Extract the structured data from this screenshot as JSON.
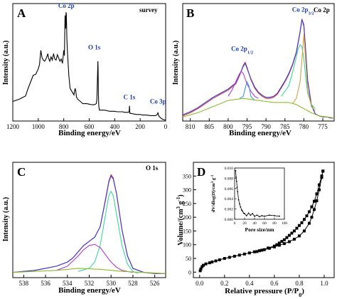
{
  "chart_data": [
    {
      "id": "A",
      "type": "line",
      "panel_letter": "A",
      "annotation": "survey",
      "xlabel": "Binding energy/eV",
      "ylabel": "Intensity (a.u.)",
      "xlim": [
        1200,
        0
      ],
      "xticks": [
        "1200",
        "1000",
        "800",
        "600",
        "400",
        "200",
        "0"
      ],
      "xtick_values": [
        1200,
        1000,
        800,
        600,
        400,
        200,
        0
      ],
      "peak_labels": [
        {
          "text": "Co 2p",
          "x": 780,
          "y": 1.0
        },
        {
          "text": "O 1s",
          "x": 560,
          "y": 0.62
        },
        {
          "text": "C 1s",
          "x": 285,
          "y": 0.16
        },
        {
          "text": "Co 3p",
          "x": 60,
          "y": 0.12
        }
      ],
      "series": [
        {
          "color": "#000000",
          "x": [
            1200,
            1150,
            1100,
            1080,
            1060,
            1040,
            1020,
            1000,
            990,
            980,
            970,
            960,
            950,
            940,
            930,
            925,
            920,
            910,
            900,
            890,
            880,
            870,
            860,
            850,
            840,
            830,
            820,
            810,
            800,
            795,
            790,
            785,
            782,
            780,
            778,
            775,
            770,
            765,
            760,
            750,
            740,
            730,
            720,
            715,
            710,
            705,
            700,
            690,
            680,
            670,
            660,
            650,
            640,
            620,
            600,
            580,
            560,
            545,
            540,
            535,
            532,
            530,
            528,
            525,
            520,
            500,
            480,
            460,
            440,
            420,
            400,
            380,
            360,
            340,
            320,
            300,
            290,
            286,
            284,
            282,
            280,
            270,
            250,
            230,
            200,
            180,
            150,
            120,
            100,
            90,
            80,
            70,
            62,
            60,
            58,
            50,
            40,
            30,
            20,
            10,
            5,
            0
          ],
          "y": [
            0.18,
            0.2,
            0.23,
            0.3,
            0.36,
            0.42,
            0.43,
            0.48,
            0.52,
            0.65,
            0.58,
            0.56,
            0.55,
            0.57,
            0.6,
            0.62,
            0.58,
            0.55,
            0.59,
            0.56,
            0.62,
            0.57,
            0.56,
            0.61,
            0.58,
            0.55,
            0.57,
            0.53,
            0.65,
            0.6,
            0.97,
            0.85,
            1.0,
            0.98,
            0.9,
            0.75,
            0.62,
            0.52,
            0.42,
            0.3,
            0.28,
            0.26,
            0.24,
            0.28,
            0.3,
            0.27,
            0.22,
            0.2,
            0.19,
            0.18,
            0.17,
            0.16,
            0.16,
            0.16,
            0.155,
            0.15,
            0.15,
            0.16,
            0.2,
            0.4,
            0.55,
            0.47,
            0.25,
            0.14,
            0.1,
            0.1,
            0.1,
            0.095,
            0.09,
            0.09,
            0.09,
            0.085,
            0.085,
            0.085,
            0.08,
            0.08,
            0.08,
            0.095,
            0.14,
            0.09,
            0.07,
            0.07,
            0.065,
            0.06,
            0.06,
            0.055,
            0.055,
            0.05,
            0.05,
            0.05,
            0.05,
            0.055,
            0.07,
            0.08,
            0.06,
            0.04,
            0.03,
            0.02,
            0.015,
            0.01,
            0.01,
            0.01
          ]
        }
      ]
    },
    {
      "id": "B",
      "type": "line",
      "panel_letter": "B",
      "annotation": "Co 2p",
      "xlabel": "Binding energy/eV",
      "ylabel": "Intensity (a.u.)",
      "xlim": [
        812,
        772
      ],
      "xticks": [
        "810",
        "805",
        "800",
        "795",
        "790",
        "785",
        "780",
        "775"
      ],
      "xtick_values": [
        810,
        805,
        800,
        795,
        790,
        785,
        780,
        775
      ],
      "peak_labels": [
        {
          "text": "Co 2p",
          "sub": "1/2",
          "x": 796.3,
          "y": 0.62
        },
        {
          "text": "Co 2p",
          "sub": "3/2",
          "x": 780.2,
          "y": 1.0
        }
      ],
      "series": [
        {
          "color": "#d63a3a",
          "x": [
            812,
            810,
            808,
            806,
            804,
            802,
            800,
            798,
            797,
            796,
            795.5,
            795,
            794,
            793,
            792,
            791,
            790,
            789,
            788,
            787,
            786,
            785,
            784,
            783,
            782,
            781,
            780.5,
            780,
            779.5,
            779,
            778,
            777,
            776,
            775,
            774,
            773,
            772
          ],
          "y": [
            0.03,
            0.06,
            0.1,
            0.15,
            0.2,
            0.24,
            0.28,
            0.34,
            0.42,
            0.52,
            0.55,
            0.5,
            0.38,
            0.3,
            0.25,
            0.22,
            0.2,
            0.2,
            0.21,
            0.24,
            0.3,
            0.36,
            0.43,
            0.52,
            0.64,
            0.84,
            0.96,
            0.92,
            0.65,
            0.38,
            0.14,
            0.05,
            0.03,
            0.02,
            0.02,
            0.01,
            0.01
          ]
        },
        {
          "color": "#3a3ad6",
          "x": [
            812,
            810,
            808,
            806,
            804,
            802,
            800,
            798,
            797,
            796,
            795.5,
            795,
            794,
            793,
            792,
            791,
            790,
            789,
            788,
            787,
            786,
            785,
            784,
            783,
            782,
            781,
            780.5,
            780,
            779.5,
            779,
            778,
            777,
            776,
            775,
            774,
            773,
            772
          ],
          "y": [
            0.04,
            0.07,
            0.11,
            0.16,
            0.21,
            0.25,
            0.29,
            0.35,
            0.43,
            0.51,
            0.54,
            0.49,
            0.39,
            0.31,
            0.26,
            0.23,
            0.21,
            0.21,
            0.22,
            0.25,
            0.31,
            0.37,
            0.44,
            0.53,
            0.65,
            0.85,
            0.97,
            0.9,
            0.63,
            0.37,
            0.13,
            0.05,
            0.03,
            0.02,
            0.02,
            0.01,
            0.01
          ]
        },
        {
          "color": "#b23ad6",
          "x": [
            800,
            799,
            798,
            797,
            796.5,
            796,
            795,
            794,
            793,
            792
          ],
          "y": [
            0.22,
            0.28,
            0.36,
            0.44,
            0.46,
            0.44,
            0.34,
            0.27,
            0.22,
            0.2
          ]
        },
        {
          "color": "#3ad6a0",
          "x": [
            786,
            784,
            783,
            782,
            781.5,
            781,
            780.5,
            780,
            779.5,
            779,
            778,
            777
          ],
          "y": [
            0.22,
            0.32,
            0.45,
            0.6,
            0.68,
            0.72,
            0.7,
            0.58,
            0.4,
            0.25,
            0.14,
            0.1
          ]
        },
        {
          "color": "#d6a03a",
          "x": [
            783,
            782,
            781,
            780.5,
            780,
            779.5,
            779,
            778,
            777
          ],
          "y": [
            0.15,
            0.2,
            0.36,
            0.58,
            0.82,
            0.55,
            0.28,
            0.12,
            0.08
          ]
        },
        {
          "color": "#3a9ad6",
          "x": [
            797,
            796,
            795.5,
            795,
            794.5,
            794,
            793
          ],
          "y": [
            0.2,
            0.22,
            0.3,
            0.36,
            0.32,
            0.22,
            0.18
          ]
        },
        {
          "color": "#8bbd2a",
          "x": [
            812,
            808,
            804,
            800,
            796,
            792,
            790,
            788,
            786,
            784,
            782,
            780,
            778,
            776,
            774,
            772
          ],
          "y": [
            0.02,
            0.06,
            0.12,
            0.18,
            0.2,
            0.18,
            0.17,
            0.16,
            0.16,
            0.16,
            0.14,
            0.1,
            0.06,
            0.03,
            0.02,
            0.01
          ]
        }
      ]
    },
    {
      "id": "C",
      "type": "line",
      "panel_letter": "C",
      "annotation": "O 1s",
      "xlabel": "Binding energy/eV",
      "ylabel": "Intensity (a.u.)",
      "xlim": [
        539,
        525
      ],
      "xticks": [
        "538",
        "536",
        "534",
        "532",
        "530",
        "528",
        "526"
      ],
      "xtick_values": [
        538,
        536,
        534,
        532,
        530,
        528,
        526
      ],
      "series": [
        {
          "color": "#d63a3a",
          "x": [
            539,
            538,
            537,
            536,
            535,
            534,
            533.5,
            533,
            532.5,
            532,
            531.5,
            531,
            530.5,
            530.2,
            530,
            529.8,
            529.5,
            529,
            528.5,
            528,
            527,
            526,
            525
          ],
          "y": [
            0.04,
            0.05,
            0.06,
            0.08,
            0.1,
            0.14,
            0.18,
            0.24,
            0.3,
            0.34,
            0.38,
            0.48,
            0.75,
            0.92,
            0.98,
            0.95,
            0.8,
            0.45,
            0.2,
            0.08,
            0.04,
            0.03,
            0.03
          ]
        },
        {
          "color": "#3a3ad6",
          "x": [
            539,
            538,
            537,
            536,
            535,
            534,
            533.5,
            533,
            532.5,
            532,
            531.5,
            531,
            530.5,
            530.2,
            530,
            529.8,
            529.5,
            529,
            528.5,
            528,
            527,
            526,
            525
          ],
          "y": [
            0.04,
            0.05,
            0.06,
            0.08,
            0.1,
            0.14,
            0.18,
            0.24,
            0.3,
            0.34,
            0.38,
            0.48,
            0.74,
            0.91,
            0.97,
            0.94,
            0.8,
            0.45,
            0.2,
            0.08,
            0.04,
            0.03,
            0.03
          ]
        },
        {
          "color": "#3ad6a0",
          "x": [
            533,
            532,
            531.5,
            531,
            530.5,
            530.2,
            530,
            529.8,
            529.5,
            529,
            528.5,
            528,
            527.5
          ],
          "y": [
            0.05,
            0.08,
            0.14,
            0.3,
            0.6,
            0.78,
            0.82,
            0.78,
            0.6,
            0.3,
            0.12,
            0.05,
            0.03
          ]
        },
        {
          "color": "#b23ad6",
          "x": [
            535,
            534,
            533,
            532.5,
            532,
            531.5,
            531,
            530.5,
            530,
            529.5,
            529,
            528
          ],
          "y": [
            0.06,
            0.1,
            0.2,
            0.26,
            0.3,
            0.31,
            0.28,
            0.21,
            0.14,
            0.09,
            0.06,
            0.04
          ]
        },
        {
          "color": "#8bbd2a",
          "x": [
            539,
            537,
            535,
            533,
            531,
            529,
            527,
            525
          ],
          "y": [
            0.04,
            0.05,
            0.06,
            0.08,
            0.07,
            0.05,
            0.04,
            0.03
          ]
        }
      ]
    },
    {
      "id": "D",
      "type": "scatter",
      "panel_letter": "D",
      "xlabel": "Relative pressure (P/P0)",
      "ylabel": "Volume/(cm3 g-1)",
      "xlim": [
        -0.05,
        1.08
      ],
      "ylim": [
        -20,
        400
      ],
      "xticks": [
        "0.0",
        "0.2",
        "0.4",
        "0.6",
        "0.8",
        "1.0"
      ],
      "xtick_values": [
        0,
        0.2,
        0.4,
        0.6,
        0.8,
        1.0
      ],
      "yticks": [
        "0",
        "50",
        "100",
        "150",
        "200",
        "250",
        "300",
        "350"
      ],
      "ytick_values": [
        0,
        50,
        100,
        150,
        200,
        250,
        300,
        350
      ],
      "series": [
        {
          "color": "#000000",
          "x": [
            0.005,
            0.01,
            0.02,
            0.03,
            0.05,
            0.08,
            0.1,
            0.13,
            0.16,
            0.2,
            0.24,
            0.28,
            0.32,
            0.36,
            0.4,
            0.44,
            0.48,
            0.52,
            0.56,
            0.6,
            0.64,
            0.68,
            0.72,
            0.76,
            0.8,
            0.84,
            0.88,
            0.9,
            0.92,
            0.94,
            0.96,
            0.98,
            0.99
          ],
          "y": [
            5,
            12,
            20,
            25,
            30,
            34,
            37,
            41,
            45,
            50,
            54,
            58,
            62,
            66,
            70,
            74,
            78,
            82,
            87,
            92,
            98,
            104,
            111,
            120,
            132,
            150,
            178,
            200,
            228,
            260,
            300,
            345,
            368
          ]
        },
        {
          "color": "#000000",
          "x": [
            0.99,
            0.98,
            0.96,
            0.94,
            0.92,
            0.9,
            0.88,
            0.86,
            0.84,
            0.82,
            0.8,
            0.78,
            0.76,
            0.74,
            0.72,
            0.7,
            0.68,
            0.66,
            0.64,
            0.62,
            0.6,
            0.55,
            0.5,
            0.46
          ],
          "y": [
            368,
            350,
            318,
            285,
            258,
            238,
            220,
            205,
            192,
            180,
            170,
            160,
            150,
            142,
            134,
            126,
            118,
            112,
            106,
            100,
            95,
            88,
            80,
            75
          ]
        }
      ],
      "inset": {
        "type": "line",
        "xlabel": "Pore size/nm",
        "ylabel": "dV/dlog(D)/cm3 g-1",
        "xlim": [
          0,
          100
        ],
        "ylim": [
          0,
          0.01
        ],
        "xticks": [
          "0",
          "20",
          "40",
          "60",
          "80",
          "100"
        ],
        "xtick_values": [
          0,
          20,
          40,
          60,
          80,
          100
        ],
        "yticks": [
          "0.000",
          "0.002",
          "0.004",
          "0.006",
          "0.008",
          "0.010"
        ],
        "ytick_values": [
          0,
          0.002,
          0.004,
          0.006,
          0.008,
          0.01
        ],
        "series": [
          {
            "color": "#000000",
            "x": [
              2,
              3,
              4,
              5,
              6,
              8,
              10,
              12,
              14,
              16,
              18,
              20,
              24,
              28,
              32,
              36,
              40,
              45,
              50,
              55,
              60,
              70,
              80,
              90
            ],
            "y": [
              0.0095,
              0.0082,
              0.0074,
              0.0062,
              0.0054,
              0.0038,
              0.003,
              0.0024,
              0.0018,
              0.0016,
              0.0012,
              0.0011,
              0.0007,
              0.0012,
              0.0008,
              0.0011,
              0.0006,
              0.0008,
              0.0005,
              0.0007,
              0.0006,
              0.0008,
              0.0007,
              0.0006
            ]
          }
        ]
      }
    }
  ]
}
